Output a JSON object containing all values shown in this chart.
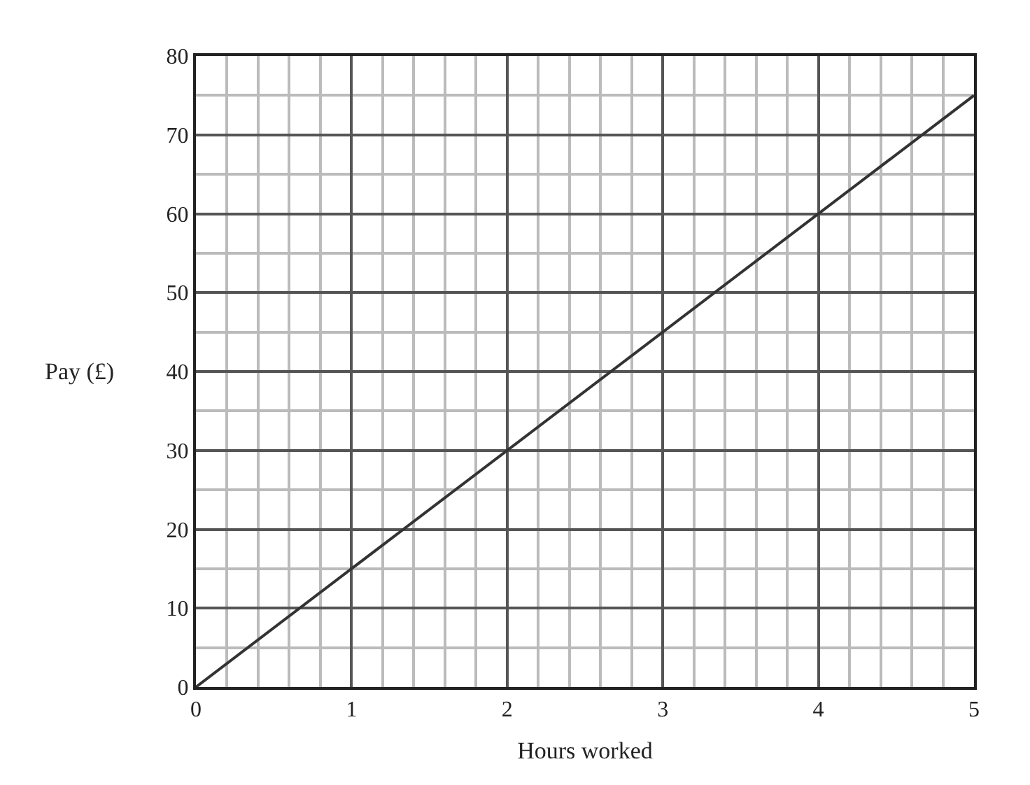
{
  "chart_data": {
    "type": "line",
    "xlabel": "Hours worked",
    "ylabel": "Pay (£)",
    "x": [
      0,
      5
    ],
    "series": [
      {
        "color": "#333333",
        "values": [
          0,
          75
        ]
      }
    ],
    "xlim": [
      0,
      5
    ],
    "ylim": [
      0,
      80
    ],
    "xticks": [
      0,
      1,
      2,
      3,
      4,
      5
    ],
    "yticks": [
      0,
      10,
      20,
      30,
      40,
      50,
      60,
      70,
      80
    ],
    "grid": true,
    "marker": "none",
    "line_style": "solid"
  }
}
